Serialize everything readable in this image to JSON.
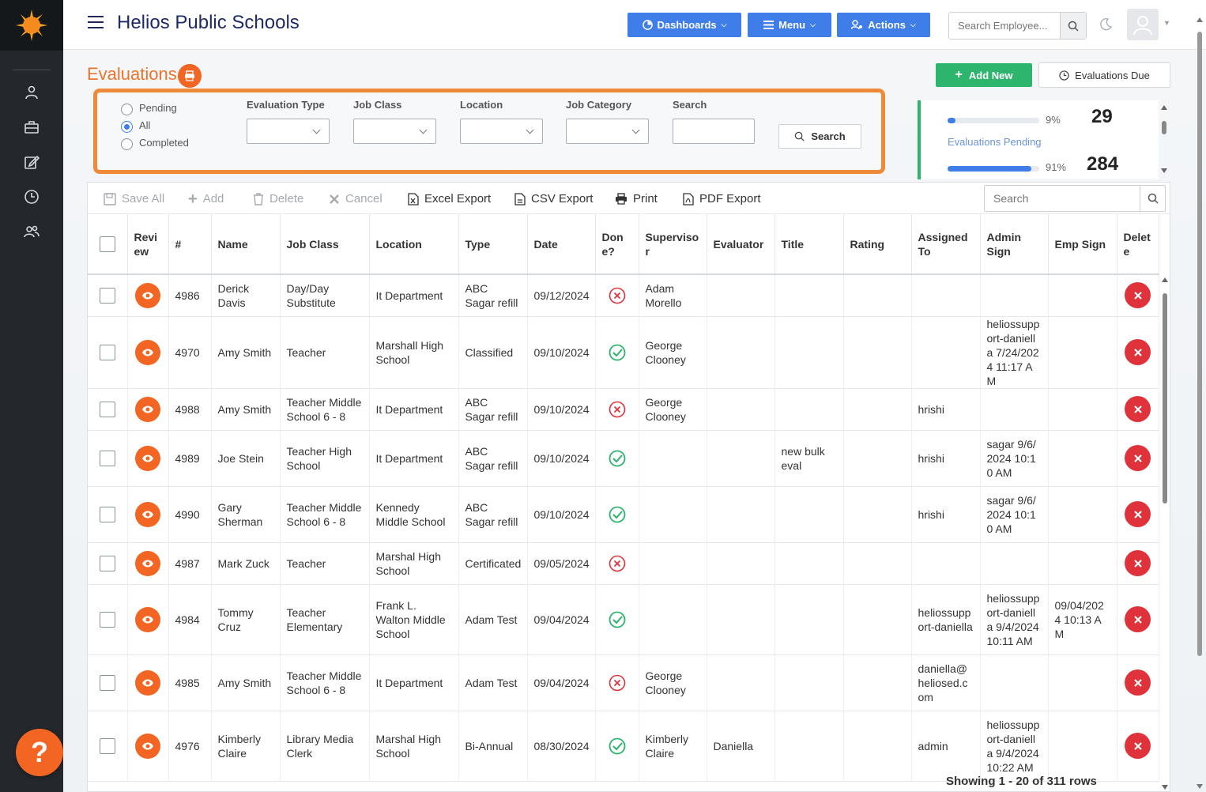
{
  "app": {
    "title": "Helios Public Schools"
  },
  "header": {
    "dashboards_label": "Dashboards",
    "menu_label": "Menu",
    "actions_label": "Actions",
    "employee_search_placeholder": "Search Employee..."
  },
  "page": {
    "title": "Evaluations",
    "add_new_label": "Add New",
    "evaluations_due_label": "Evaluations Due"
  },
  "filter": {
    "status_options": [
      "Pending",
      "All",
      "Completed"
    ],
    "selected_status": "All",
    "evaluation_type_label": "Evaluation Type",
    "job_class_label": "Job Class",
    "location_label": "Location",
    "job_category_label": "Job Category",
    "search_label": "Search",
    "search_button": "Search"
  },
  "stats": {
    "pending_pct_label": "9%",
    "pending_pct": 9,
    "pending_count": "29",
    "pending_label": "Evaluations Pending",
    "completed_pct_label": "91%",
    "completed_pct": 91,
    "completed_count": "284"
  },
  "toolbar": {
    "save_all": "Save All",
    "add": "Add",
    "delete": "Delete",
    "cancel": "Cancel",
    "excel_export": "Excel Export",
    "csv_export": "CSV Export",
    "print": "Print",
    "pdf_export": "PDF Export",
    "search_placeholder": "Search"
  },
  "columns": [
    "Review",
    "#",
    "Name",
    "Job Class",
    "Location",
    "Type",
    "Date",
    "Done?",
    "Supervisor",
    "Evaluator",
    "Title",
    "Rating",
    "Assigned To",
    "Admin Sign",
    "Emp Sign",
    "Delete"
  ],
  "rows": [
    {
      "id": "4986",
      "name": "Derick Davis",
      "job_class": "Day/Day Substitute",
      "location": "It Department",
      "type": "ABC Sagar refill",
      "date": "09/12/2024",
      "done": false,
      "supervisor": "Adam Morello",
      "evaluator": "",
      "title": "",
      "rating": "",
      "assigned_to": "",
      "admin_sign": "",
      "emp_sign": ""
    },
    {
      "id": "4970",
      "name": "Amy Smith",
      "job_class": "Teacher",
      "location": "Marshall High School",
      "type": "Classified",
      "date": "09/10/2024",
      "done": true,
      "supervisor": "George Clooney",
      "evaluator": "",
      "title": "",
      "rating": "",
      "assigned_to": "",
      "admin_sign": "heliossupport-daniella 7/24/2024 11:17 AM",
      "emp_sign": ""
    },
    {
      "id": "4988",
      "name": "Amy Smith",
      "job_class": "Teacher Middle School 6 - 8",
      "location": "It Department",
      "type": "ABC Sagar refill",
      "date": "09/10/2024",
      "done": false,
      "supervisor": "George Clooney",
      "evaluator": "",
      "title": "",
      "rating": "",
      "assigned_to": "hrishi",
      "admin_sign": "",
      "emp_sign": ""
    },
    {
      "id": "4989",
      "name": "Joe Stein",
      "job_class": "Teacher High School",
      "location": "It Department",
      "type": "ABC Sagar refill",
      "date": "09/10/2024",
      "done": true,
      "supervisor": "",
      "evaluator": "",
      "title": "new bulk eval",
      "rating": "",
      "assigned_to": "hrishi",
      "admin_sign": "sagar 9/6/2024 10:10 AM",
      "emp_sign": ""
    },
    {
      "id": "4990",
      "name": "Gary Sherman",
      "job_class": "Teacher Middle School 6 - 8",
      "location": "Kennedy Middle School",
      "type": "ABC Sagar refill",
      "date": "09/10/2024",
      "done": true,
      "supervisor": "",
      "evaluator": "",
      "title": "",
      "rating": "",
      "assigned_to": "hrishi",
      "admin_sign": "sagar 9/6/2024 10:10 AM",
      "emp_sign": ""
    },
    {
      "id": "4987",
      "name": "Mark Zuck",
      "job_class": "Teacher",
      "location": "Marshal High School",
      "type": "Certificated",
      "date": "09/05/2024",
      "done": false,
      "supervisor": "",
      "evaluator": "",
      "title": "",
      "rating": "",
      "assigned_to": "",
      "admin_sign": "",
      "emp_sign": ""
    },
    {
      "id": "4984",
      "name": "Tommy Cruz",
      "job_class": "Teacher Elementary",
      "location": "Frank L. Walton Middle School",
      "type": "Adam Test",
      "date": "09/04/2024",
      "done": true,
      "supervisor": "",
      "evaluator": "",
      "title": "",
      "rating": "",
      "assigned_to": "heliossupport-daniella",
      "admin_sign": "heliossupport-daniella 9/4/2024 10:11 AM",
      "emp_sign": "09/04/2024 10:13 AM"
    },
    {
      "id": "4985",
      "name": "Amy Smith",
      "job_class": "Teacher Middle School 6 - 8",
      "location": "It Department",
      "type": "Adam Test",
      "date": "09/04/2024",
      "done": false,
      "supervisor": "George Clooney",
      "evaluator": "",
      "title": "",
      "rating": "",
      "assigned_to": "daniella@heliosed.com",
      "admin_sign": "",
      "emp_sign": ""
    },
    {
      "id": "4976",
      "name": "Kimberly Claire",
      "job_class": "Library Media Clerk",
      "location": "Marshal High School",
      "type": "Bi-Annual",
      "date": "08/30/2024",
      "done": true,
      "supervisor": "Kimberly Claire",
      "evaluator": "Daniella",
      "title": "",
      "rating": "",
      "assigned_to": "admin",
      "admin_sign": "heliossupport-daniella 9/4/2024 10:22 AM",
      "emp_sign": ""
    }
  ],
  "footer": {
    "paging": "Showing 1 - 20 of 311 rows"
  },
  "colors": {
    "accent_orange": "#f26522",
    "primary_blue": "#3f7ee8",
    "success_green": "#2db46d",
    "danger_red": "#e0323a"
  }
}
